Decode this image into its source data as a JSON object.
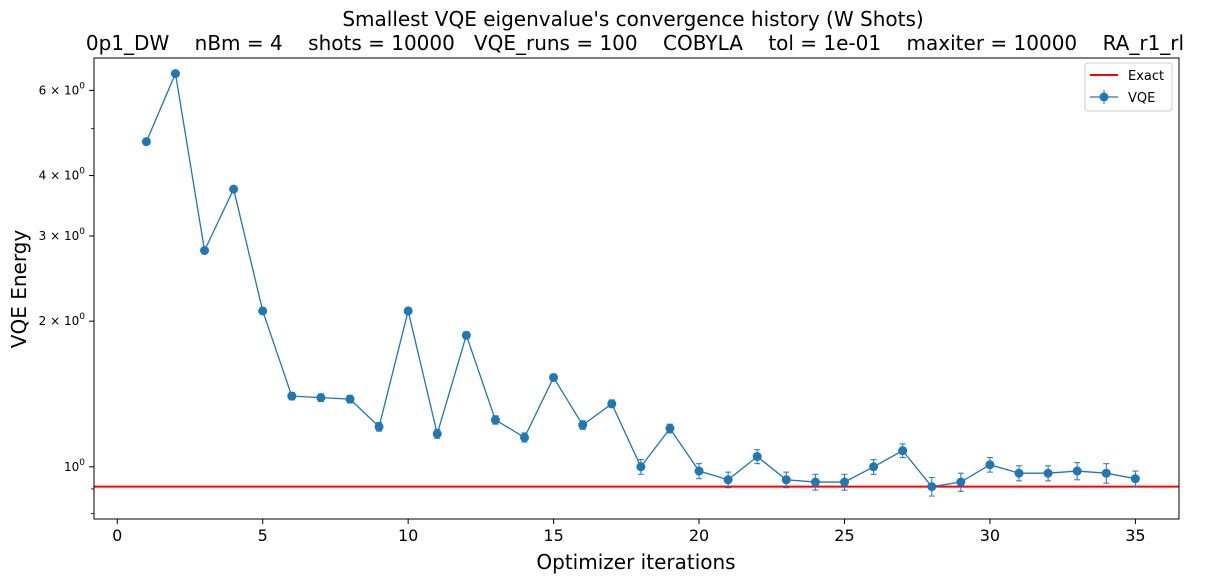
{
  "chart_data": {
    "type": "line",
    "title": "Smallest VQE eigenvalue's convergence history (W Shots)",
    "subtitle": "0p1_DW    nBm = 4    shots = 10000   VQE_runs = 100    COBYLA    tol = 1e-01    maxiter = 10000    RA_r1_rl",
    "xlabel": "Optimizer iterations",
    "ylabel": "VQE Energy",
    "xlim": [
      -0.8,
      36.5
    ],
    "ylim": [
      0.78,
      7.0
    ],
    "yscale": "log",
    "grid": false,
    "legend_position": "top-right",
    "x_ticks": [
      0,
      5,
      10,
      15,
      20,
      25,
      30,
      35
    ],
    "x_tick_labels": [
      "0",
      "5",
      "10",
      "15",
      "20",
      "25",
      "30",
      "35"
    ],
    "y_major_ticks": [
      1,
      2,
      3,
      4,
      6
    ],
    "y_major_tick_labels": [
      {
        "base": "10",
        "exp": "0",
        "mant": ""
      },
      {
        "base": "10",
        "exp": "0",
        "mant": "2 × "
      },
      {
        "base": "10",
        "exp": "0",
        "mant": "3 × "
      },
      {
        "base": "10",
        "exp": "0",
        "mant": "4 × "
      },
      {
        "base": "10",
        "exp": "0",
        "mant": "6 × "
      }
    ],
    "y_minor_ticks": [
      0.8,
      0.9,
      5
    ],
    "exact": {
      "name": "Exact",
      "value": 0.91,
      "color": "#ff0000"
    },
    "series": [
      {
        "name": "VQE",
        "color": "#1f77b4",
        "x": [
          1,
          2,
          3,
          4,
          5,
          6,
          7,
          8,
          9,
          10,
          11,
          12,
          13,
          14,
          15,
          16,
          17,
          18,
          19,
          20,
          21,
          22,
          23,
          24,
          25,
          26,
          27,
          28,
          29,
          30,
          31,
          32,
          33,
          34,
          35
        ],
        "values": [
          4.7,
          6.5,
          2.8,
          3.75,
          2.1,
          1.4,
          1.39,
          1.38,
          1.21,
          2.1,
          1.17,
          1.87,
          1.25,
          1.15,
          1.53,
          1.22,
          1.35,
          1.0,
          1.2,
          0.98,
          0.94,
          1.05,
          0.94,
          0.93,
          0.93,
          1.0,
          1.08,
          0.91,
          0.93,
          1.01,
          0.97,
          0.97,
          0.98,
          0.97,
          0.945
        ],
        "errors": [
          0.0,
          0.0,
          0.0,
          0.0,
          0.0,
          0.025,
          0.025,
          0.025,
          0.025,
          0.025,
          0.025,
          0.03,
          0.025,
          0.025,
          0.025,
          0.025,
          0.025,
          0.035,
          0.025,
          0.035,
          0.035,
          0.035,
          0.035,
          0.035,
          0.035,
          0.035,
          0.035,
          0.04,
          0.04,
          0.035,
          0.035,
          0.035,
          0.04,
          0.045,
          0.035
        ]
      }
    ]
  }
}
